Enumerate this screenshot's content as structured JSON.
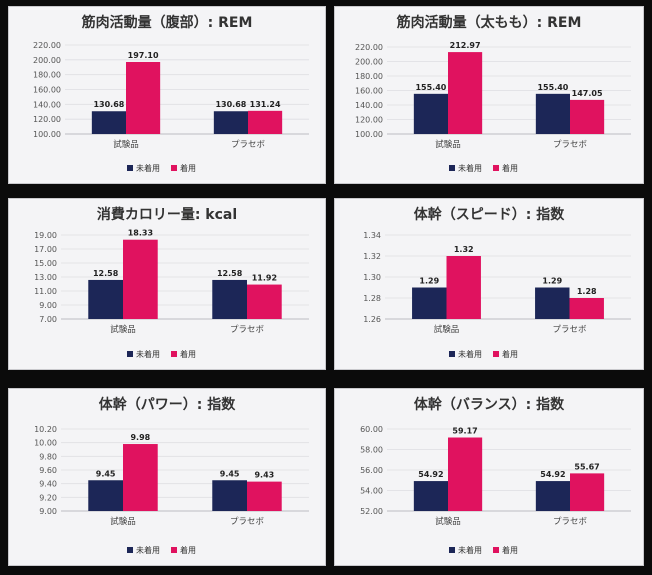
{
  "legend": {
    "series": [
      "未着用",
      "着用"
    ]
  },
  "colors": {
    "series": [
      "#1c2657",
      "#e0125f"
    ]
  },
  "chart_data": [
    {
      "type": "bar",
      "title": "筋肉活動量（腹部）: REM",
      "categories": [
        "試験品",
        "プラセボ"
      ],
      "series": [
        {
          "name": "未着用",
          "values": [
            130.68,
            130.68
          ]
        },
        {
          "name": "着用",
          "values": [
            197.1,
            131.24
          ]
        }
      ],
      "data_labels": [
        [
          "130.68",
          "130.68"
        ],
        [
          "197.10",
          "131.24"
        ]
      ],
      "yticks": [
        "220.00",
        "200.00",
        "180.00",
        "160.00",
        "140.00",
        "120.00",
        "100.00"
      ],
      "ylim": [
        100,
        220
      ],
      "legend_position": "bottom"
    },
    {
      "type": "bar",
      "title": "筋肉活動量（太もも）: REM",
      "categories": [
        "試験品",
        "プラセボ"
      ],
      "series": [
        {
          "name": "未着用",
          "values": [
            155.4,
            155.4
          ]
        },
        {
          "name": "着用",
          "values": [
            212.97,
            147.05
          ]
        }
      ],
      "data_labels": [
        [
          "155.40",
          "155.40"
        ],
        [
          "212.97",
          "147.05"
        ]
      ],
      "yticks": [
        "220.00",
        "200.00",
        "180.00",
        "160.00",
        "140.00",
        "120.00",
        "100.00"
      ],
      "ylim": [
        100,
        220
      ],
      "legend_position": "bottom"
    },
    {
      "type": "bar",
      "title": "消費カロリー量: kcal",
      "categories": [
        "試験品",
        "プラセボ"
      ],
      "series": [
        {
          "name": "未着用",
          "values": [
            12.58,
            12.58
          ]
        },
        {
          "name": "着用",
          "values": [
            18.33,
            11.92
          ]
        }
      ],
      "data_labels": [
        [
          "12.58",
          "12.58"
        ],
        [
          "18.33",
          "11.92"
        ]
      ],
      "yticks": [
        "19.00",
        "17.00",
        "15.00",
        "13.00",
        "11.00",
        "9.00",
        "7.00"
      ],
      "ylim": [
        7,
        19
      ],
      "legend_position": "bottom"
    },
    {
      "type": "bar",
      "title": "体幹（スピード）: 指数",
      "categories": [
        "試験品",
        "プラセボ"
      ],
      "series": [
        {
          "name": "未着用",
          "values": [
            1.29,
            1.29
          ]
        },
        {
          "name": "着用",
          "values": [
            1.32,
            1.28
          ]
        }
      ],
      "data_labels": [
        [
          "1.29",
          "1.29"
        ],
        [
          "1.32",
          "1.28"
        ]
      ],
      "yticks": [
        "1.34",
        "1.32",
        "1.30",
        "1.28",
        "1.26"
      ],
      "ylim": [
        1.26,
        1.34
      ],
      "legend_position": "bottom"
    },
    {
      "type": "bar",
      "title": "体幹（パワー）: 指数",
      "categories": [
        "試験品",
        "プラセボ"
      ],
      "series": [
        {
          "name": "未着用",
          "values": [
            9.45,
            9.45
          ]
        },
        {
          "name": "着用",
          "values": [
            9.98,
            9.43
          ]
        }
      ],
      "data_labels": [
        [
          "9.45",
          "9.45"
        ],
        [
          "9.98",
          "9.43"
        ]
      ],
      "yticks": [
        "10.20",
        "10.00",
        "9.80",
        "9.60",
        "9.40",
        "9.20",
        "9.00"
      ],
      "ylim": [
        9.0,
        10.2
      ],
      "legend_position": "bottom"
    },
    {
      "type": "bar",
      "title": "体幹（バランス）: 指数",
      "categories": [
        "試験品",
        "プラセボ"
      ],
      "series": [
        {
          "name": "未着用",
          "values": [
            54.92,
            54.92
          ]
        },
        {
          "name": "着用",
          "values": [
            59.17,
            55.67
          ]
        }
      ],
      "data_labels": [
        [
          "54.92",
          "54.92"
        ],
        [
          "59.17",
          "55.67"
        ]
      ],
      "yticks": [
        "60.00",
        "58.00",
        "56.00",
        "54.00",
        "52.00"
      ],
      "ylim": [
        52,
        60
      ],
      "legend_position": "bottom"
    }
  ]
}
